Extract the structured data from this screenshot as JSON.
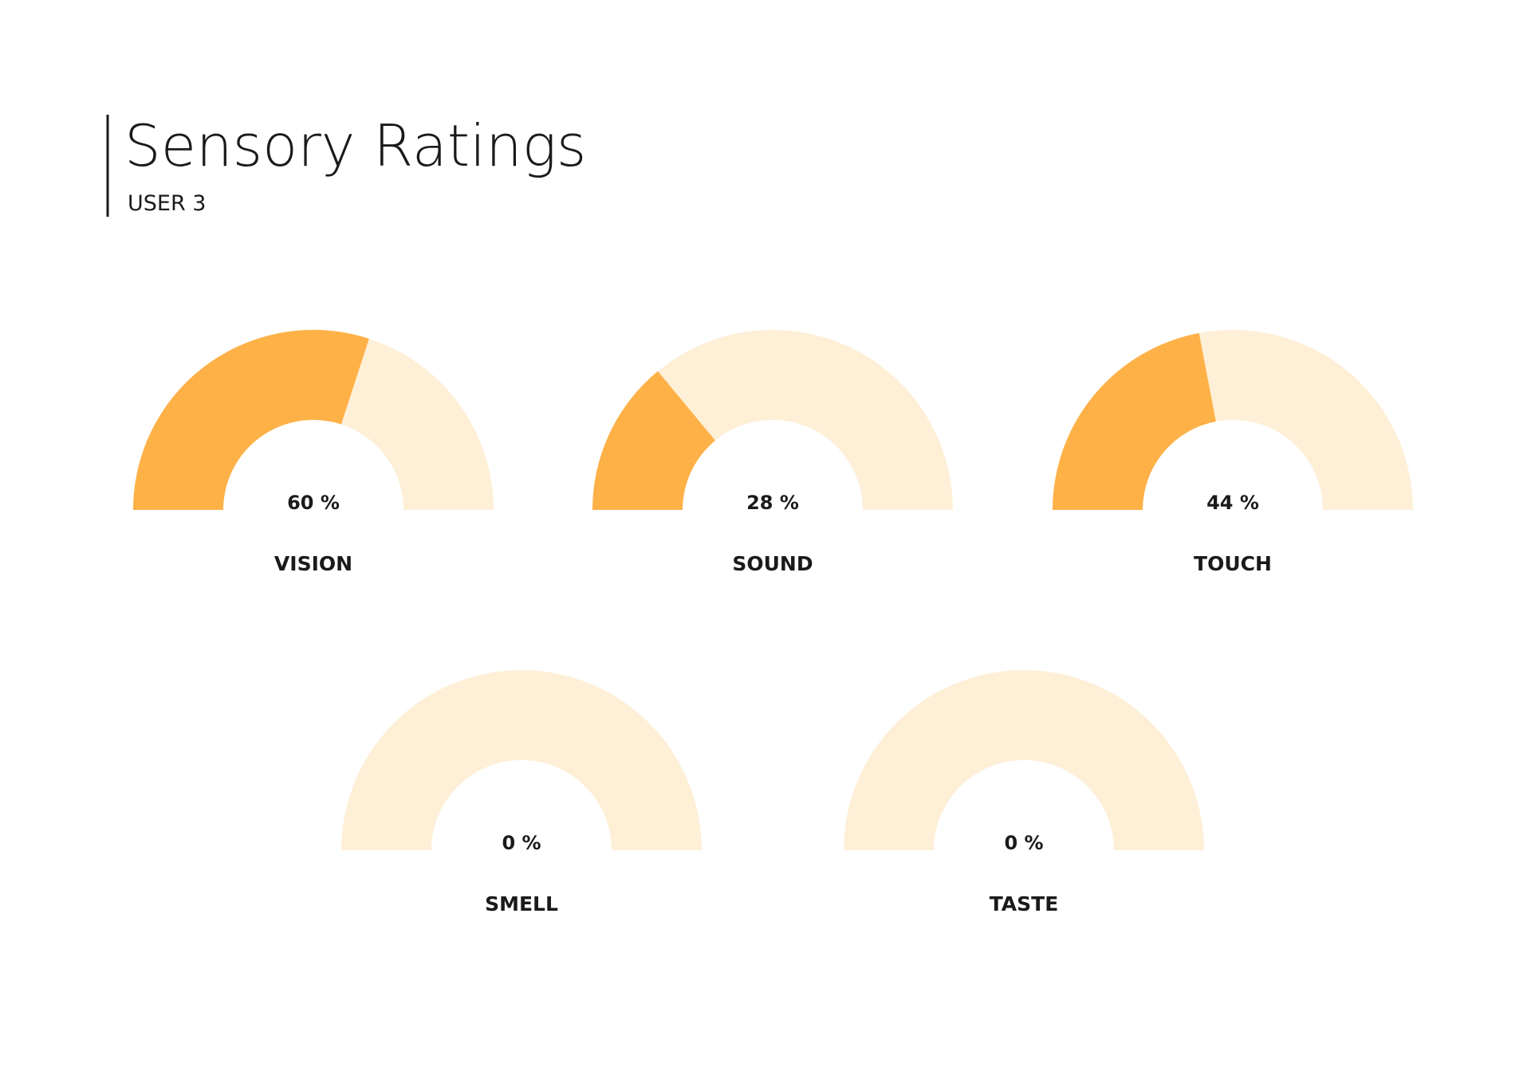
{
  "title": "Sensory Ratings",
  "subtitle": "USER 3",
  "chart_data": [
    {
      "type": "gauge",
      "title": "VISION",
      "values": [
        60
      ],
      "value_labels": [
        "60 %"
      ],
      "ylim": [
        0,
        100
      ],
      "color": "#fdb147",
      "track_color": "#feefd7"
    },
    {
      "type": "gauge",
      "title": "SOUND",
      "values": [
        28
      ],
      "value_labels": [
        "28 %"
      ],
      "ylim": [
        0,
        100
      ],
      "color": "#fdb147",
      "track_color": "#feefd7"
    },
    {
      "type": "gauge",
      "title": "TOUCH",
      "values": [
        44
      ],
      "value_labels": [
        "44 %"
      ],
      "ylim": [
        0,
        100
      ],
      "color": "#fdb147",
      "track_color": "#feefd7"
    },
    {
      "type": "gauge",
      "title": "SMELL",
      "values": [
        0
      ],
      "value_labels": [
        "0 %"
      ],
      "ylim": [
        0,
        100
      ],
      "color": "#fdb147",
      "track_color": "#feefd7"
    },
    {
      "type": "gauge",
      "title": "TASTE",
      "values": [
        0
      ],
      "value_labels": [
        "0 %"
      ],
      "ylim": [
        0,
        100
      ],
      "color": "#fdb147",
      "track_color": "#feefd7"
    }
  ]
}
